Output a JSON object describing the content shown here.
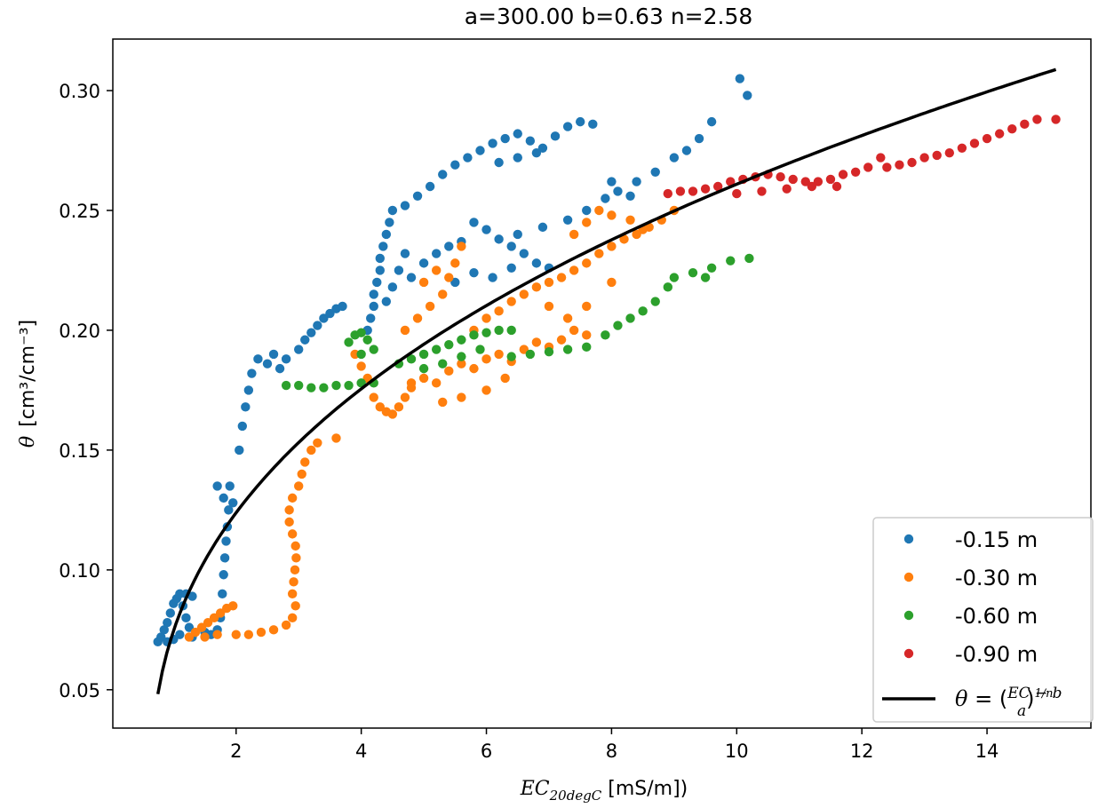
{
  "chart_data": {
    "type": "scatter",
    "title": "a=300.00   b=0.63   n=2.58",
    "xlabel_main": "EC",
    "xlabel_sub": "20degC",
    "xlabel_unit": " [mS/m])",
    "ylabel_symbol": "θ",
    "ylabel_unit": "[cm³/cm⁻³]",
    "xlim": [
      0.03,
      15.66
    ],
    "ylim": [
      0.034,
      0.3215
    ],
    "xticks": [
      2,
      4,
      6,
      8,
      10,
      12,
      14
    ],
    "xtick_labels": [
      "2",
      "4",
      "6",
      "8",
      "10",
      "12",
      "14"
    ],
    "yticks": [
      0.05,
      0.1,
      0.15,
      0.2,
      0.25,
      0.3
    ],
    "ytick_labels": [
      "0.05",
      "0.10",
      "0.15",
      "0.20",
      "0.25",
      "0.30"
    ],
    "grid": false,
    "legend_position": "lower-right",
    "fit": {
      "a": 300.0,
      "b": 0.63,
      "n": 2.58,
      "x_range": [
        0.75,
        15.1
      ],
      "color": "#000000",
      "label": "θ = ((EC − b)/a)^(1/n)"
    },
    "series": [
      {
        "name": "-0.15 m",
        "color": "#1f77b4",
        "points": [
          [
            0.75,
            0.07
          ],
          [
            0.8,
            0.072
          ],
          [
            0.85,
            0.075
          ],
          [
            0.9,
            0.078
          ],
          [
            0.95,
            0.082
          ],
          [
            1.0,
            0.086
          ],
          [
            1.05,
            0.088
          ],
          [
            1.1,
            0.09
          ],
          [
            1.15,
            0.085
          ],
          [
            1.2,
            0.08
          ],
          [
            1.25,
            0.076
          ],
          [
            1.3,
            0.072
          ],
          [
            0.9,
            0.07
          ],
          [
            1.0,
            0.071
          ],
          [
            1.1,
            0.073
          ],
          [
            1.2,
            0.09
          ],
          [
            1.3,
            0.089
          ],
          [
            1.5,
            0.074
          ],
          [
            1.6,
            0.073
          ],
          [
            1.7,
            0.075
          ],
          [
            1.75,
            0.08
          ],
          [
            1.78,
            0.09
          ],
          [
            1.8,
            0.098
          ],
          [
            1.82,
            0.105
          ],
          [
            1.84,
            0.112
          ],
          [
            1.86,
            0.118
          ],
          [
            1.88,
            0.125
          ],
          [
            1.7,
            0.135
          ],
          [
            1.8,
            0.13
          ],
          [
            1.9,
            0.135
          ],
          [
            1.95,
            0.128
          ],
          [
            2.05,
            0.15
          ],
          [
            2.1,
            0.16
          ],
          [
            2.15,
            0.168
          ],
          [
            2.2,
            0.175
          ],
          [
            2.25,
            0.182
          ],
          [
            2.35,
            0.188
          ],
          [
            2.5,
            0.186
          ],
          [
            2.6,
            0.19
          ],
          [
            2.7,
            0.184
          ],
          [
            2.8,
            0.188
          ],
          [
            3.0,
            0.192
          ],
          [
            3.1,
            0.196
          ],
          [
            3.2,
            0.199
          ],
          [
            3.3,
            0.202
          ],
          [
            3.4,
            0.205
          ],
          [
            3.5,
            0.207
          ],
          [
            3.6,
            0.209
          ],
          [
            3.7,
            0.21
          ],
          [
            4.1,
            0.2
          ],
          [
            4.15,
            0.205
          ],
          [
            4.2,
            0.21
          ],
          [
            4.2,
            0.215
          ],
          [
            4.25,
            0.22
          ],
          [
            4.3,
            0.225
          ],
          [
            4.3,
            0.23
          ],
          [
            4.35,
            0.235
          ],
          [
            4.4,
            0.24
          ],
          [
            4.45,
            0.245
          ],
          [
            4.5,
            0.25
          ],
          [
            4.4,
            0.212
          ],
          [
            4.5,
            0.218
          ],
          [
            4.6,
            0.225
          ],
          [
            4.7,
            0.232
          ],
          [
            4.7,
            0.252
          ],
          [
            4.9,
            0.256
          ],
          [
            5.1,
            0.26
          ],
          [
            5.3,
            0.265
          ],
          [
            5.5,
            0.269
          ],
          [
            5.7,
            0.272
          ],
          [
            5.9,
            0.275
          ],
          [
            6.1,
            0.278
          ],
          [
            6.3,
            0.28
          ],
          [
            6.5,
            0.282
          ],
          [
            6.7,
            0.279
          ],
          [
            6.9,
            0.276
          ],
          [
            7.1,
            0.281
          ],
          [
            7.3,
            0.285
          ],
          [
            7.5,
            0.287
          ],
          [
            7.7,
            0.286
          ],
          [
            6.2,
            0.27
          ],
          [
            6.5,
            0.272
          ],
          [
            6.8,
            0.274
          ],
          [
            4.8,
            0.222
          ],
          [
            5.0,
            0.228
          ],
          [
            5.2,
            0.232
          ],
          [
            5.4,
            0.235
          ],
          [
            5.6,
            0.237
          ],
          [
            5.8,
            0.245
          ],
          [
            6.0,
            0.242
          ],
          [
            6.2,
            0.238
          ],
          [
            6.4,
            0.235
          ],
          [
            6.6,
            0.232
          ],
          [
            6.8,
            0.228
          ],
          [
            7.0,
            0.226
          ],
          [
            5.5,
            0.22
          ],
          [
            5.8,
            0.224
          ],
          [
            6.1,
            0.222
          ],
          [
            6.4,
            0.226
          ],
          [
            6.5,
            0.24
          ],
          [
            6.9,
            0.243
          ],
          [
            7.3,
            0.246
          ],
          [
            7.6,
            0.25
          ],
          [
            7.9,
            0.255
          ],
          [
            8.1,
            0.258
          ],
          [
            8.4,
            0.262
          ],
          [
            8.7,
            0.266
          ],
          [
            9.0,
            0.272
          ],
          [
            9.2,
            0.275
          ],
          [
            9.4,
            0.28
          ],
          [
            9.6,
            0.287
          ],
          [
            8.0,
            0.262
          ],
          [
            8.3,
            0.256
          ],
          [
            10.05,
            0.305
          ],
          [
            10.17,
            0.298
          ]
        ]
      },
      {
        "name": "-0.30 m",
        "color": "#ff7f0e",
        "points": [
          [
            1.25,
            0.072
          ],
          [
            1.35,
            0.074
          ],
          [
            1.45,
            0.076
          ],
          [
            1.55,
            0.078
          ],
          [
            1.65,
            0.08
          ],
          [
            1.75,
            0.082
          ],
          [
            1.85,
            0.084
          ],
          [
            1.95,
            0.085
          ],
          [
            1.5,
            0.072
          ],
          [
            1.7,
            0.073
          ],
          [
            2.0,
            0.073
          ],
          [
            2.2,
            0.073
          ],
          [
            2.4,
            0.074
          ],
          [
            2.6,
            0.075
          ],
          [
            2.8,
            0.077
          ],
          [
            2.9,
            0.08
          ],
          [
            2.95,
            0.085
          ],
          [
            2.9,
            0.09
          ],
          [
            2.92,
            0.095
          ],
          [
            2.94,
            0.1
          ],
          [
            2.96,
            0.105
          ],
          [
            2.95,
            0.11
          ],
          [
            2.9,
            0.115
          ],
          [
            2.85,
            0.12
          ],
          [
            2.85,
            0.125
          ],
          [
            2.9,
            0.13
          ],
          [
            3.0,
            0.135
          ],
          [
            3.05,
            0.14
          ],
          [
            3.1,
            0.145
          ],
          [
            3.2,
            0.15
          ],
          [
            3.3,
            0.153
          ],
          [
            3.6,
            0.155
          ],
          [
            3.9,
            0.19
          ],
          [
            4.0,
            0.185
          ],
          [
            4.1,
            0.18
          ],
          [
            4.2,
            0.172
          ],
          [
            4.3,
            0.168
          ],
          [
            4.4,
            0.166
          ],
          [
            4.5,
            0.165
          ],
          [
            4.6,
            0.168
          ],
          [
            4.7,
            0.172
          ],
          [
            4.8,
            0.176
          ],
          [
            4.8,
            0.178
          ],
          [
            5.0,
            0.18
          ],
          [
            5.2,
            0.178
          ],
          [
            5.4,
            0.183
          ],
          [
            5.6,
            0.186
          ],
          [
            5.8,
            0.184
          ],
          [
            6.0,
            0.188
          ],
          [
            6.2,
            0.19
          ],
          [
            6.4,
            0.187
          ],
          [
            6.6,
            0.192
          ],
          [
            6.8,
            0.195
          ],
          [
            7.0,
            0.193
          ],
          [
            7.2,
            0.196
          ],
          [
            7.4,
            0.2
          ],
          [
            7.6,
            0.198
          ],
          [
            5.3,
            0.17
          ],
          [
            5.6,
            0.172
          ],
          [
            6.0,
            0.175
          ],
          [
            6.3,
            0.18
          ],
          [
            4.7,
            0.2
          ],
          [
            4.9,
            0.205
          ],
          [
            5.1,
            0.21
          ],
          [
            5.3,
            0.215
          ],
          [
            5.4,
            0.222
          ],
          [
            5.5,
            0.228
          ],
          [
            5.6,
            0.235
          ],
          [
            5.0,
            0.22
          ],
          [
            5.2,
            0.225
          ],
          [
            5.8,
            0.2
          ],
          [
            6.0,
            0.205
          ],
          [
            6.2,
            0.208
          ],
          [
            6.4,
            0.212
          ],
          [
            6.6,
            0.215
          ],
          [
            6.8,
            0.218
          ],
          [
            7.0,
            0.22
          ],
          [
            7.2,
            0.222
          ],
          [
            7.4,
            0.225
          ],
          [
            7.6,
            0.228
          ],
          [
            7.8,
            0.232
          ],
          [
            8.0,
            0.235
          ],
          [
            8.2,
            0.238
          ],
          [
            8.4,
            0.24
          ],
          [
            8.6,
            0.243
          ],
          [
            8.8,
            0.246
          ],
          [
            9.0,
            0.25
          ],
          [
            7.4,
            0.24
          ],
          [
            7.6,
            0.245
          ],
          [
            7.8,
            0.25
          ],
          [
            8.0,
            0.248
          ],
          [
            8.3,
            0.246
          ],
          [
            8.5,
            0.242
          ],
          [
            7.0,
            0.21
          ],
          [
            7.3,
            0.205
          ],
          [
            7.6,
            0.21
          ],
          [
            8.0,
            0.22
          ]
        ]
      },
      {
        "name": "-0.60 m",
        "color": "#2ca02c",
        "points": [
          [
            2.8,
            0.177
          ],
          [
            3.0,
            0.177
          ],
          [
            3.2,
            0.176
          ],
          [
            3.4,
            0.176
          ],
          [
            3.6,
            0.177
          ],
          [
            3.8,
            0.177
          ],
          [
            4.0,
            0.178
          ],
          [
            4.2,
            0.178
          ],
          [
            3.8,
            0.195
          ],
          [
            3.9,
            0.198
          ],
          [
            4.0,
            0.199
          ],
          [
            4.1,
            0.196
          ],
          [
            4.2,
            0.192
          ],
          [
            4.0,
            0.19
          ],
          [
            4.6,
            0.186
          ],
          [
            4.8,
            0.188
          ],
          [
            5.0,
            0.19
          ],
          [
            5.2,
            0.192
          ],
          [
            5.4,
            0.194
          ],
          [
            5.6,
            0.196
          ],
          [
            5.8,
            0.198
          ],
          [
            6.0,
            0.199
          ],
          [
            6.2,
            0.2
          ],
          [
            6.4,
            0.2
          ],
          [
            5.0,
            0.184
          ],
          [
            5.3,
            0.186
          ],
          [
            5.6,
            0.189
          ],
          [
            5.9,
            0.192
          ],
          [
            6.4,
            0.189
          ],
          [
            6.7,
            0.19
          ],
          [
            7.0,
            0.191
          ],
          [
            7.3,
            0.192
          ],
          [
            7.6,
            0.193
          ],
          [
            7.9,
            0.198
          ],
          [
            8.1,
            0.202
          ],
          [
            8.3,
            0.205
          ],
          [
            8.5,
            0.208
          ],
          [
            8.7,
            0.212
          ],
          [
            8.9,
            0.218
          ],
          [
            9.0,
            0.222
          ],
          [
            9.3,
            0.224
          ],
          [
            9.6,
            0.226
          ],
          [
            9.9,
            0.229
          ],
          [
            10.2,
            0.23
          ],
          [
            9.5,
            0.222
          ]
        ]
      },
      {
        "name": "-0.90 m",
        "color": "#d62728",
        "points": [
          [
            8.9,
            0.257
          ],
          [
            9.1,
            0.258
          ],
          [
            9.3,
            0.258
          ],
          [
            9.5,
            0.259
          ],
          [
            9.7,
            0.26
          ],
          [
            9.9,
            0.262
          ],
          [
            10.1,
            0.263
          ],
          [
            10.3,
            0.264
          ],
          [
            10.5,
            0.265
          ],
          [
            10.7,
            0.264
          ],
          [
            10.9,
            0.263
          ],
          [
            11.1,
            0.262
          ],
          [
            11.3,
            0.262
          ],
          [
            11.5,
            0.263
          ],
          [
            11.7,
            0.265
          ],
          [
            11.9,
            0.266
          ],
          [
            12.1,
            0.268
          ],
          [
            12.3,
            0.272
          ],
          [
            10.0,
            0.257
          ],
          [
            10.4,
            0.258
          ],
          [
            10.8,
            0.259
          ],
          [
            11.2,
            0.26
          ],
          [
            11.6,
            0.26
          ],
          [
            12.4,
            0.268
          ],
          [
            12.6,
            0.269
          ],
          [
            12.8,
            0.27
          ],
          [
            13.0,
            0.272
          ],
          [
            13.2,
            0.273
          ],
          [
            13.4,
            0.274
          ],
          [
            13.6,
            0.276
          ],
          [
            13.8,
            0.278
          ],
          [
            14.0,
            0.28
          ],
          [
            14.2,
            0.282
          ],
          [
            14.4,
            0.284
          ],
          [
            14.6,
            0.286
          ],
          [
            14.8,
            0.288
          ],
          [
            15.1,
            0.288
          ]
        ]
      }
    ]
  }
}
